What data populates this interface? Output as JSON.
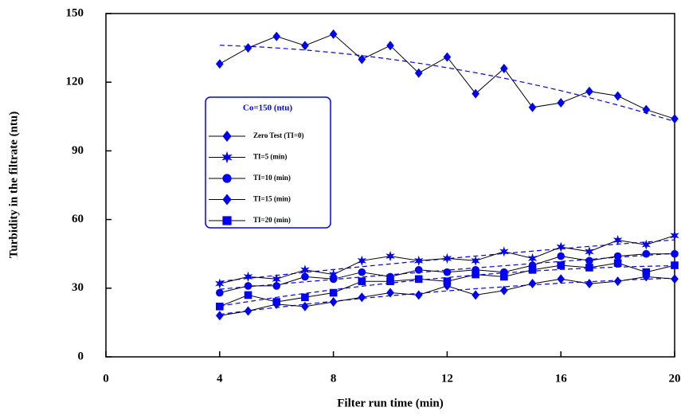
{
  "chart_data": {
    "type": "line",
    "x_label": "Filter run time (min)",
    "y_label": "Turbidity in the filtrate (ntu)",
    "legend_title": "Co=150  (ntu)",
    "xlim": [
      0,
      20
    ],
    "xticks": [
      0,
      4,
      8,
      12,
      16,
      20
    ],
    "ylim": [
      0,
      150
    ],
    "yticks": [
      0,
      30,
      60,
      90,
      120,
      150
    ],
    "trendline": true,
    "trend_color": "#0000ff",
    "line_color": "#000000",
    "x": [
      4,
      5,
      6,
      7,
      8,
      9,
      10,
      11,
      12,
      13,
      14,
      15,
      16,
      17,
      18,
      19,
      20
    ],
    "series": [
      {
        "name": "Zero Test  (TI=0)",
        "color": "#0000ff",
        "marker": "diamond",
        "values": [
          128,
          135,
          140,
          136,
          141,
          130,
          136,
          124,
          131,
          115,
          126,
          109,
          111,
          116,
          114,
          108,
          104
        ]
      },
      {
        "name": "TI=5  (min)",
        "color": "#0000ff",
        "marker": "star",
        "values": [
          32,
          35,
          34,
          38,
          36,
          42,
          44,
          42,
          43,
          42,
          46,
          43,
          48,
          46,
          51,
          49,
          53
        ]
      },
      {
        "name": "TI=10  (min)",
        "color": "#0000ff",
        "marker": "circle",
        "values": [
          28,
          31,
          31,
          35,
          34,
          37,
          35,
          38,
          37,
          38,
          37,
          40,
          44,
          42,
          44,
          45,
          45
        ]
      },
      {
        "name": "TI=15  (min)",
        "color": "#0000ff",
        "marker": "diamond",
        "values": [
          18,
          20,
          23,
          22,
          24,
          26,
          28,
          27,
          31,
          27,
          29,
          32,
          34,
          32,
          33,
          35,
          34
        ]
      },
      {
        "name": "TI=20  (min)",
        "color": "#0000ff",
        "marker": "square",
        "values": [
          22,
          27,
          24,
          26,
          28,
          33,
          33,
          34,
          33,
          36,
          35,
          38,
          40,
          39,
          41,
          37,
          40
        ]
      }
    ]
  }
}
